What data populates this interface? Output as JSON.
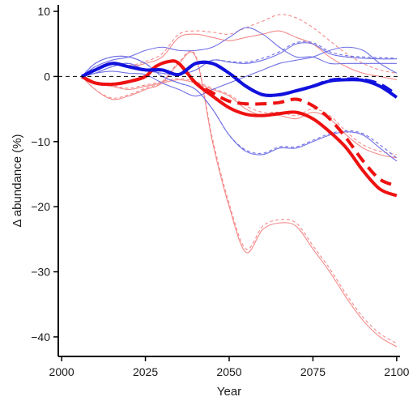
{
  "chart_data": {
    "type": "line",
    "title": "",
    "xlabel": "Year",
    "ylabel": "Δ abundance (%)",
    "xlim": [
      1999,
      2101
    ],
    "ylim": [
      -43,
      11
    ],
    "x_ticks": [
      2000,
      2025,
      2050,
      2075,
      2100
    ],
    "y_ticks": [
      10,
      0,
      -10,
      -20,
      -30,
      -40
    ],
    "grid": false,
    "legend": "none",
    "reference_line": {
      "y": 0,
      "style": "dashed",
      "color": "#000000"
    },
    "colors": {
      "red": "#ee1111",
      "blue": "#1111dd",
      "light_red": "#f58a8a",
      "light_blue": "#6f6fe6"
    },
    "series": [
      {
        "color": "light_red",
        "width": "thin",
        "dash": "solid",
        "x": [
          2006,
          2010,
          2015,
          2020,
          2025,
          2030,
          2035,
          2040,
          2045,
          2050,
          2055,
          2060,
          2065,
          2070,
          2075,
          2080,
          2085,
          2090,
          2095,
          2100
        ],
        "y": [
          0,
          -2,
          -3.5,
          -3,
          -2,
          -1,
          2,
          3,
          -10,
          -20,
          -27,
          -23.5,
          -22.5,
          -23,
          -26.5,
          -30,
          -34,
          -37.5,
          -40,
          -41.5
        ]
      },
      {
        "color": "light_red",
        "width": "thin",
        "dash": "dashed",
        "x": [
          2006,
          2010,
          2015,
          2020,
          2025,
          2030,
          2035,
          2040,
          2045,
          2050,
          2055,
          2060,
          2065,
          2070,
          2075,
          2080,
          2085,
          2090,
          2095,
          2100
        ],
        "y": [
          0,
          -2,
          -3.3,
          -2.8,
          -1.8,
          -0.8,
          2.2,
          3.2,
          -9.5,
          -19.5,
          -26.5,
          -23,
          -22,
          -22.5,
          -26,
          -29.5,
          -33.5,
          -37,
          -39.5,
          -41
        ]
      },
      {
        "color": "light_red",
        "width": "thin",
        "dash": "solid",
        "x": [
          2006,
          2010,
          2015,
          2020,
          2025,
          2030,
          2035,
          2040,
          2045,
          2050,
          2055,
          2060,
          2065,
          2070,
          2075,
          2080,
          2085,
          2090,
          2095,
          2100
        ],
        "y": [
          0,
          1,
          2,
          1.5,
          2,
          3,
          6,
          6.5,
          6,
          5.5,
          6,
          6.5,
          7,
          6,
          5,
          3,
          1.5,
          0.5,
          0,
          -0.5
        ]
      },
      {
        "color": "light_red",
        "width": "thin",
        "dash": "dashed",
        "x": [
          2006,
          2010,
          2015,
          2020,
          2025,
          2030,
          2035,
          2040,
          2045,
          2050,
          2055,
          2060,
          2065,
          2070,
          2075,
          2080,
          2085,
          2090,
          2095,
          2100
        ],
        "y": [
          0,
          1.2,
          2.2,
          1.7,
          2.3,
          3.5,
          6.5,
          7,
          6.8,
          6.5,
          7.5,
          8.5,
          9.5,
          9,
          7.5,
          5.5,
          3.5,
          2,
          1,
          0.5
        ]
      },
      {
        "color": "light_red",
        "width": "thin",
        "dash": "solid",
        "x": [
          2006,
          2010,
          2015,
          2020,
          2025,
          2030,
          2035,
          2040,
          2045,
          2050,
          2055,
          2060,
          2065,
          2070,
          2075,
          2080,
          2085,
          2090,
          2095,
          2100
        ],
        "y": [
          0,
          -1,
          -1.5,
          -2,
          -1.5,
          -1,
          -0.5,
          -1,
          -2,
          -3,
          -5,
          -6,
          -6,
          -6.5,
          -5.5,
          -6.5,
          -9,
          -11,
          -12,
          -12.5
        ]
      },
      {
        "color": "light_red",
        "width": "thin",
        "dash": "dashed",
        "x": [
          2006,
          2010,
          2015,
          2020,
          2025,
          2030,
          2035,
          2040,
          2045,
          2050,
          2055,
          2060,
          2065,
          2070,
          2075,
          2080,
          2085,
          2090,
          2095,
          2100
        ],
        "y": [
          0,
          -1,
          -1.4,
          -1.8,
          -1.3,
          -0.8,
          -0.3,
          -0.8,
          -1.8,
          -2.8,
          -4.5,
          -5.5,
          -5.5,
          -6,
          -5,
          -6,
          -8.5,
          -10.5,
          -11.5,
          -12
        ]
      },
      {
        "color": "light_blue",
        "width": "thin",
        "dash": "solid",
        "x": [
          2006,
          2010,
          2015,
          2020,
          2025,
          2030,
          2035,
          2040,
          2045,
          2050,
          2055,
          2060,
          2065,
          2070,
          2075,
          2080,
          2085,
          2090,
          2095,
          2100
        ],
        "y": [
          0,
          1.5,
          2.5,
          3,
          4,
          4.5,
          4,
          4,
          4.5,
          6,
          7.5,
          6.5,
          4.5,
          3,
          3,
          2,
          2,
          2,
          2,
          2
        ]
      },
      {
        "color": "light_blue",
        "width": "thin",
        "dash": "solid",
        "x": [
          2006,
          2010,
          2015,
          2020,
          2025,
          2030,
          2035,
          2040,
          2045,
          2050,
          2055,
          2060,
          2065,
          2070,
          2075,
          2080,
          2085,
          2090,
          2095,
          2100
        ],
        "y": [
          0,
          2,
          3,
          3,
          2,
          0,
          -1,
          -2,
          -5,
          -9,
          -11.5,
          -12,
          -11,
          -11,
          -10,
          -9,
          -8.5,
          -9,
          -11,
          -13
        ]
      },
      {
        "color": "light_blue",
        "width": "thin",
        "dash": "dashed",
        "x": [
          2006,
          2010,
          2015,
          2020,
          2025,
          2030,
          2035,
          2040,
          2045,
          2050,
          2055,
          2060,
          2065,
          2070,
          2075,
          2080,
          2085,
          2090,
          2095,
          2100
        ],
        "y": [
          0,
          2,
          3,
          3,
          2,
          0,
          -1,
          -2,
          -5,
          -9,
          -11.3,
          -11.8,
          -10.8,
          -10.8,
          -9.8,
          -8.8,
          -8.3,
          -8.8,
          -10.5,
          -12.5
        ]
      },
      {
        "color": "light_blue",
        "width": "thin",
        "dash": "solid",
        "x": [
          2006,
          2010,
          2015,
          2020,
          2025,
          2030,
          2035,
          2040,
          2045,
          2050,
          2055,
          2060,
          2065,
          2070,
          2075,
          2080,
          2085,
          2090,
          2095,
          2100
        ],
        "y": [
          0,
          0.5,
          1.5,
          2,
          1,
          0.5,
          0.3,
          1,
          2.5,
          2.2,
          2,
          2.5,
          3.5,
          5,
          5,
          3.5,
          3,
          2.8,
          2.7,
          2.7
        ]
      },
      {
        "color": "light_blue",
        "width": "thin",
        "dash": "dashed",
        "x": [
          2006,
          2010,
          2015,
          2020,
          2025,
          2030,
          2035,
          2040,
          2045,
          2050,
          2055,
          2060,
          2065,
          2070,
          2075,
          2080,
          2085,
          2090,
          2095,
          2100
        ],
        "y": [
          0,
          0.5,
          1.5,
          2,
          1,
          0.5,
          0.3,
          1,
          2.5,
          2.3,
          2.2,
          2.8,
          3.8,
          5.2,
          5.2,
          3.8,
          3.2,
          3,
          2.9,
          2.8
        ]
      },
      {
        "color": "light_blue",
        "width": "thin",
        "dash": "solid",
        "x": [
          2006,
          2010,
          2015,
          2020,
          2025,
          2030,
          2035,
          2040,
          2045,
          2050,
          2055,
          2060,
          2065,
          2070,
          2075,
          2080,
          2085,
          2090,
          2095,
          2100
        ],
        "y": [
          0,
          0.5,
          0.8,
          0.5,
          0.3,
          -1,
          -2,
          -3,
          -2,
          -1,
          0,
          1,
          2,
          2.5,
          3,
          4,
          4.5,
          4,
          2,
          0.5
        ]
      },
      {
        "color": "red",
        "width": "thick",
        "dash": "solid",
        "x": [
          2006,
          2010,
          2015,
          2020,
          2025,
          2028,
          2032,
          2035,
          2040,
          2045,
          2050,
          2055,
          2060,
          2065,
          2070,
          2075,
          2080,
          2085,
          2090,
          2095,
          2100
        ],
        "y": [
          0,
          -1,
          -1.2,
          -0.8,
          0,
          1.5,
          2.3,
          2,
          -1,
          -3,
          -4.8,
          -5.8,
          -6,
          -5.7,
          -5.5,
          -6.5,
          -8.5,
          -11,
          -14.5,
          -17.3,
          -18.3
        ]
      },
      {
        "color": "red",
        "width": "thick",
        "dash": "dashed",
        "x": [
          2006,
          2010,
          2015,
          2020,
          2025,
          2028,
          2032,
          2035,
          2040,
          2045,
          2050,
          2055,
          2060,
          2065,
          2070,
          2075,
          2080,
          2085,
          2090,
          2095,
          2100
        ],
        "y": [
          0,
          -1,
          -1.2,
          -0.8,
          0,
          1.5,
          2.3,
          2,
          -1,
          -2.5,
          -3.8,
          -4.2,
          -4.2,
          -4,
          -3.5,
          -4.5,
          -6.5,
          -9.5,
          -13,
          -15.8,
          -16.8
        ]
      },
      {
        "color": "blue",
        "width": "thick",
        "dash": "solid",
        "x": [
          2006,
          2010,
          2015,
          2020,
          2025,
          2030,
          2035,
          2040,
          2045,
          2050,
          2055,
          2060,
          2065,
          2070,
          2075,
          2080,
          2085,
          2090,
          2095,
          2100
        ],
        "y": [
          0,
          1,
          2,
          1.5,
          1,
          1,
          0.3,
          2,
          2,
          0.5,
          -1.5,
          -2.8,
          -2.8,
          -2.2,
          -1.5,
          -0.7,
          -0.5,
          -0.6,
          -1.5,
          -3.2
        ]
      },
      {
        "color": "blue",
        "width": "thick",
        "dash": "dashed",
        "x": [
          2006,
          2010,
          2015,
          2020,
          2025,
          2030,
          2035,
          2040,
          2045,
          2050,
          2055,
          2060,
          2065,
          2070,
          2075,
          2080,
          2085,
          2090,
          2095,
          2100
        ],
        "y": [
          0,
          1,
          2,
          1.5,
          1,
          1,
          0.3,
          2,
          2,
          0.5,
          -1.5,
          -2.8,
          -2.8,
          -2.2,
          -1.5,
          -0.6,
          -0.4,
          -0.5,
          -1.2,
          -2.8
        ]
      }
    ]
  }
}
